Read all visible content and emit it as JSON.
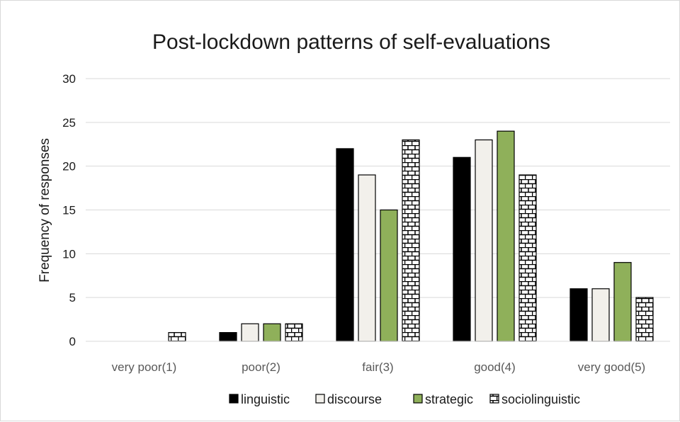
{
  "chart_data": {
    "type": "bar",
    "title": "Post-lockdown patterns of self-evaluations",
    "xlabel": "",
    "ylabel": "Frequency of responses",
    "categories": [
      "very poor(1)",
      "poor(2)",
      "fair(3)",
      "good(4)",
      "very good(5)"
    ],
    "ylim": [
      0,
      30
    ],
    "yticks": [
      0,
      5,
      10,
      15,
      20,
      25,
      30
    ],
    "grid": true,
    "legend": "bottom",
    "series": [
      {
        "name": "linguistic",
        "values": [
          0,
          1,
          22,
          21,
          6
        ],
        "color": "#000000",
        "pattern": "solid"
      },
      {
        "name": "discourse",
        "values": [
          0,
          2,
          19,
          23,
          6
        ],
        "color": "#f2f0eb",
        "pattern": "solid"
      },
      {
        "name": "strategic",
        "values": [
          0,
          2,
          15,
          24,
          9
        ],
        "color": "#8fb05a",
        "pattern": "solid"
      },
      {
        "name": "sociolinguistic",
        "values": [
          1,
          2,
          23,
          19,
          5
        ],
        "color": "#ffffff",
        "pattern": "brick"
      }
    ]
  }
}
